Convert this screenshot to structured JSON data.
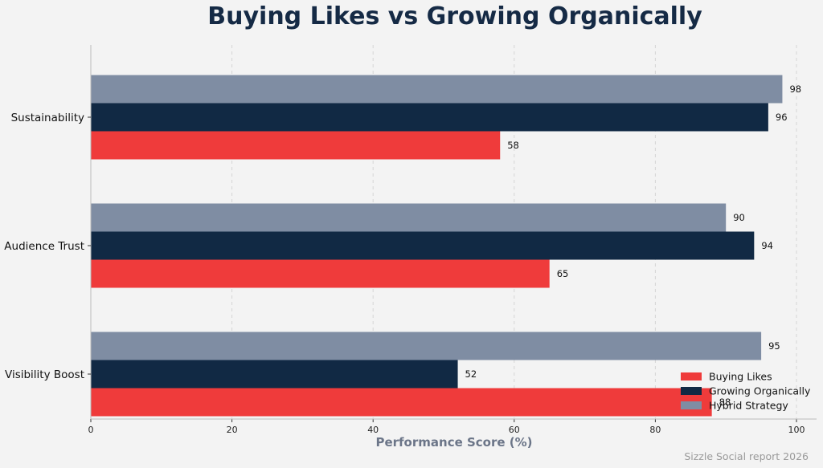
{
  "chart_data": {
    "type": "bar",
    "orientation": "horizontal",
    "title": "Buying Likes vs Growing Organically",
    "xlabel": "Performance Score (%)",
    "ylabel": "",
    "categories": [
      "Visibility Boost",
      "Audience Trust",
      "Sustainability"
    ],
    "series": [
      {
        "name": "Buying Likes",
        "color": "#ef3b3b",
        "values": [
          88,
          65,
          58
        ]
      },
      {
        "name": "Growing Organically",
        "color": "#112944",
        "values": [
          52,
          94,
          96
        ]
      },
      {
        "name": "Hybrid Strategy",
        "color": "#7f8da3",
        "values": [
          95,
          90,
          98
        ]
      }
    ],
    "xlim": [
      0,
      103
    ],
    "xticks": [
      0,
      20,
      40,
      60,
      80,
      100
    ],
    "grid": "vertical dashed",
    "legend_position": "lower-right",
    "footer": "Sizzle Social report 2026"
  }
}
